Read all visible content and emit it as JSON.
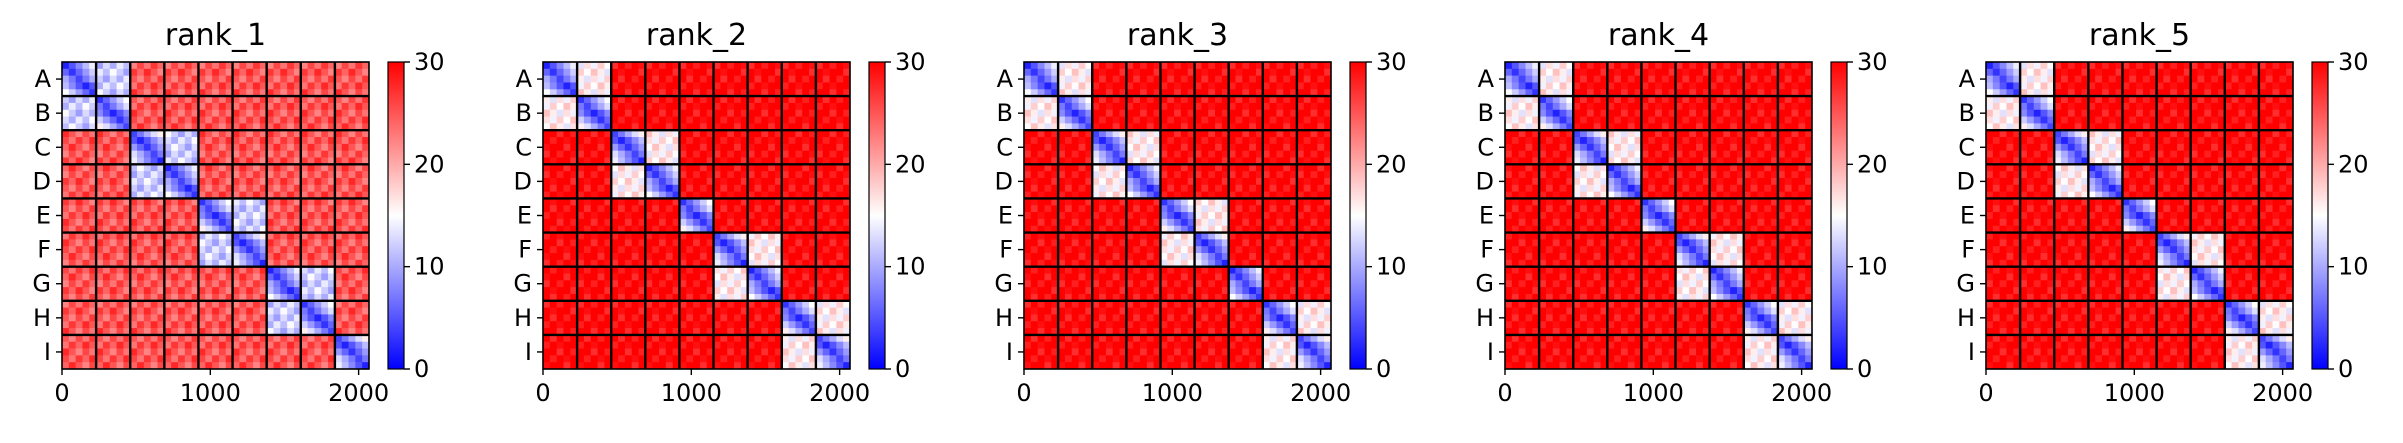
{
  "chart_data": [
    {
      "type": "heatmap",
      "title": "rank_1",
      "row_labels": [
        "A",
        "B",
        "C",
        "D",
        "E",
        "F",
        "G",
        "H",
        "I"
      ],
      "x_ticks": [
        "0",
        "1000",
        "2000"
      ],
      "xlim": [
        0,
        2070
      ],
      "colorbar": {
        "ticks": [
          "0",
          "10",
          "20",
          "30"
        ],
        "range": [
          0,
          30
        ],
        "colormap": "bwr"
      },
      "block_pattern": "unpaired",
      "block_mean_distance": [
        [
          3,
          12,
          25,
          25,
          25,
          25,
          25,
          25,
          25
        ],
        [
          12,
          3,
          25,
          25,
          25,
          25,
          25,
          25,
          25
        ],
        [
          25,
          25,
          3,
          12,
          25,
          25,
          25,
          25,
          25
        ],
        [
          25,
          25,
          12,
          3,
          25,
          25,
          25,
          25,
          25
        ],
        [
          25,
          25,
          25,
          25,
          3,
          12,
          25,
          25,
          25
        ],
        [
          25,
          25,
          25,
          25,
          12,
          3,
          25,
          25,
          25
        ],
        [
          25,
          25,
          25,
          25,
          25,
          25,
          3,
          12,
          25
        ],
        [
          25,
          25,
          25,
          25,
          25,
          25,
          12,
          3,
          25
        ],
        [
          25,
          25,
          25,
          25,
          25,
          25,
          25,
          25,
          3
        ]
      ]
    },
    {
      "type": "heatmap",
      "title": "rank_2",
      "row_labels": [
        "A",
        "B",
        "C",
        "D",
        "E",
        "F",
        "G",
        "H",
        "I"
      ],
      "x_ticks": [
        "0",
        "1000",
        "2000"
      ],
      "xlim": [
        0,
        2070
      ],
      "colorbar": {
        "ticks": [
          "0",
          "10",
          "20",
          "30"
        ],
        "range": [
          0,
          30
        ],
        "colormap": "bwr"
      },
      "block_pairs": [
        [
          0,
          1
        ],
        [
          2,
          3
        ],
        [
          5,
          6
        ],
        [
          7,
          8
        ]
      ],
      "block_mean_distance": [
        [
          3,
          16,
          30,
          30,
          30,
          30,
          30,
          30,
          30
        ],
        [
          16,
          3,
          30,
          30,
          30,
          30,
          30,
          30,
          30
        ],
        [
          30,
          30,
          3,
          16,
          30,
          30,
          30,
          30,
          30
        ],
        [
          30,
          30,
          16,
          3,
          30,
          30,
          30,
          30,
          30
        ],
        [
          30,
          30,
          30,
          30,
          3,
          30,
          30,
          30,
          30
        ],
        [
          30,
          30,
          30,
          30,
          30,
          3,
          16,
          30,
          30
        ],
        [
          30,
          30,
          30,
          30,
          30,
          16,
          3,
          30,
          30
        ],
        [
          30,
          30,
          30,
          30,
          30,
          30,
          30,
          3,
          16
        ],
        [
          30,
          30,
          30,
          30,
          30,
          30,
          30,
          16,
          3
        ]
      ]
    },
    {
      "type": "heatmap",
      "title": "rank_3",
      "row_labels": [
        "A",
        "B",
        "C",
        "D",
        "E",
        "F",
        "G",
        "H",
        "I"
      ],
      "x_ticks": [
        "0",
        "1000",
        "2000"
      ],
      "xlim": [
        0,
        2070
      ],
      "colorbar": {
        "ticks": [
          "0",
          "10",
          "20",
          "30"
        ],
        "range": [
          0,
          30
        ],
        "colormap": "bwr"
      },
      "block_pairs": [
        [
          0,
          1
        ],
        [
          2,
          3
        ],
        [
          4,
          5
        ],
        [
          7,
          8
        ]
      ],
      "block_mean_distance": [
        [
          3,
          16,
          30,
          30,
          30,
          30,
          30,
          30,
          30
        ],
        [
          16,
          3,
          30,
          30,
          30,
          30,
          30,
          30,
          30
        ],
        [
          30,
          30,
          3,
          16,
          30,
          30,
          30,
          30,
          30
        ],
        [
          30,
          30,
          16,
          3,
          30,
          30,
          30,
          30,
          30
        ],
        [
          30,
          30,
          30,
          30,
          3,
          16,
          30,
          30,
          30
        ],
        [
          30,
          30,
          30,
          30,
          16,
          3,
          30,
          30,
          30
        ],
        [
          30,
          30,
          30,
          30,
          30,
          30,
          3,
          30,
          30
        ],
        [
          30,
          30,
          30,
          30,
          30,
          30,
          30,
          3,
          16
        ],
        [
          30,
          30,
          30,
          30,
          30,
          30,
          30,
          16,
          3
        ]
      ]
    },
    {
      "type": "heatmap",
      "title": "rank_4",
      "row_labels": [
        "A",
        "B",
        "C",
        "D",
        "E",
        "F",
        "G",
        "H",
        "I"
      ],
      "x_ticks": [
        "0",
        "1000",
        "2000"
      ],
      "xlim": [
        0,
        2070
      ],
      "colorbar": {
        "ticks": [
          "0",
          "10",
          "20",
          "30"
        ],
        "range": [
          0,
          30
        ],
        "colormap": "bwr"
      },
      "block_pairs": [
        [
          0,
          1
        ],
        [
          2,
          3
        ],
        [
          5,
          6
        ],
        [
          7,
          8
        ]
      ],
      "block_mean_distance": [
        [
          3,
          16,
          30,
          30,
          30,
          30,
          30,
          30,
          30
        ],
        [
          16,
          3,
          30,
          30,
          30,
          30,
          30,
          30,
          30
        ],
        [
          30,
          30,
          3,
          16,
          30,
          30,
          30,
          30,
          30
        ],
        [
          30,
          30,
          16,
          3,
          30,
          30,
          30,
          30,
          30
        ],
        [
          30,
          30,
          30,
          30,
          3,
          30,
          30,
          30,
          30
        ],
        [
          30,
          30,
          30,
          30,
          30,
          3,
          16,
          30,
          30
        ],
        [
          30,
          30,
          30,
          30,
          30,
          16,
          3,
          30,
          30
        ],
        [
          30,
          30,
          30,
          30,
          30,
          30,
          30,
          3,
          16
        ],
        [
          30,
          30,
          30,
          30,
          30,
          30,
          30,
          16,
          3
        ]
      ]
    },
    {
      "type": "heatmap",
      "title": "rank_5",
      "row_labels": [
        "A",
        "B",
        "C",
        "D",
        "E",
        "F",
        "G",
        "H",
        "I"
      ],
      "x_ticks": [
        "0",
        "1000",
        "2000"
      ],
      "xlim": [
        0,
        2070
      ],
      "colorbar": {
        "ticks": [
          "0",
          "10",
          "20",
          "30"
        ],
        "range": [
          0,
          30
        ],
        "colormap": "bwr"
      },
      "block_pairs": [
        [
          0,
          1
        ],
        [
          2,
          3
        ],
        [
          5,
          6
        ],
        [
          7,
          8
        ]
      ],
      "block_mean_distance": [
        [
          3,
          16,
          30,
          30,
          30,
          30,
          30,
          30,
          30
        ],
        [
          16,
          3,
          30,
          30,
          30,
          30,
          30,
          30,
          30
        ],
        [
          30,
          30,
          3,
          16,
          30,
          30,
          30,
          30,
          30
        ],
        [
          30,
          30,
          16,
          3,
          30,
          30,
          30,
          30,
          30
        ],
        [
          30,
          30,
          30,
          30,
          3,
          30,
          30,
          30,
          30
        ],
        [
          30,
          30,
          30,
          30,
          30,
          3,
          16,
          30,
          30
        ],
        [
          30,
          30,
          30,
          30,
          30,
          16,
          3,
          30,
          30
        ],
        [
          30,
          30,
          30,
          30,
          30,
          30,
          30,
          3,
          16
        ],
        [
          30,
          30,
          30,
          30,
          30,
          30,
          30,
          16,
          3
        ]
      ]
    }
  ]
}
